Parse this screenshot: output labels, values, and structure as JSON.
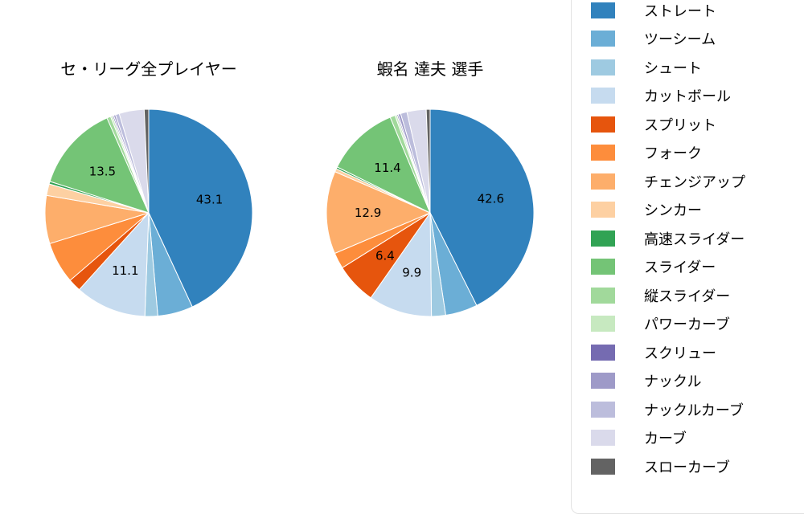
{
  "legend": {
    "items": [
      {
        "label": "ストレート",
        "color": "#3182bd"
      },
      {
        "label": "ツーシーム",
        "color": "#6baed6"
      },
      {
        "label": "シュート",
        "color": "#9ecae1"
      },
      {
        "label": "カットボール",
        "color": "#c6dbef"
      },
      {
        "label": "スプリット",
        "color": "#e6550d"
      },
      {
        "label": "フォーク",
        "color": "#fd8d3c"
      },
      {
        "label": "チェンジアップ",
        "color": "#fdae6b"
      },
      {
        "label": "シンカー",
        "color": "#fdd0a2"
      },
      {
        "label": "高速スライダー",
        "color": "#31a354"
      },
      {
        "label": "スライダー",
        "color": "#74c476"
      },
      {
        "label": "縦スライダー",
        "color": "#a1d99b"
      },
      {
        "label": "パワーカーブ",
        "color": "#c7e9c0"
      },
      {
        "label": "スクリュー",
        "color": "#756bb1"
      },
      {
        "label": "ナックル",
        "color": "#9e9ac8"
      },
      {
        "label": "ナックルカーブ",
        "color": "#bcbddc"
      },
      {
        "label": "カーブ",
        "color": "#dadaeb"
      },
      {
        "label": "スローカーブ",
        "color": "#636363"
      }
    ]
  },
  "chart_data": [
    {
      "type": "pie",
      "title": "セ・リーグ全プレイヤー",
      "categories": [
        "ストレート",
        "ツーシーム",
        "シュート",
        "カットボール",
        "スプリット",
        "フォーク",
        "チェンジアップ",
        "シンカー",
        "高速スライダー",
        "スライダー",
        "縦スライダー",
        "パワーカーブ",
        "スクリュー",
        "ナックル",
        "ナックルカーブ",
        "カーブ",
        "スローカーブ"
      ],
      "values": [
        43.1,
        5.5,
        2.0,
        11.1,
        2.0,
        6.5,
        7.5,
        1.8,
        0.4,
        13.5,
        0.6,
        0.3,
        0.2,
        0.3,
        0.6,
        3.9,
        0.7
      ],
      "visible_labels": {
        "ストレート": "43.1",
        "カットボール": "11.1",
        "スライダー": "13.5"
      },
      "layout": {
        "start_angle": "top",
        "direction": "clockwise",
        "label_radius_fraction": 0.6
      }
    },
    {
      "type": "pie",
      "title": "蝦名 達夫 選手",
      "categories": [
        "ストレート",
        "ツーシーム",
        "シュート",
        "カットボール",
        "スプリット",
        "フォーク",
        "チェンジアップ",
        "シンカー",
        "高速スライダー",
        "スライダー",
        "縦スライダー",
        "パワーカーブ",
        "スクリュー",
        "ナックル",
        "ナックルカーブ",
        "カーブ",
        "スローカーブ"
      ],
      "values": [
        42.6,
        5.0,
        2.2,
        9.9,
        6.4,
        2.5,
        12.9,
        0.5,
        0.3,
        11.4,
        0.8,
        0.3,
        0.2,
        0.4,
        1.0,
        3.0,
        0.6
      ],
      "visible_labels": {
        "ストレート": "42.6",
        "カットボール": "9.9",
        "スプリット": "6.4",
        "チェンジアップ": "12.9",
        "スライダー": "11.4"
      },
      "layout": {
        "start_angle": "top",
        "direction": "clockwise",
        "label_radius_fraction": 0.6
      }
    }
  ]
}
